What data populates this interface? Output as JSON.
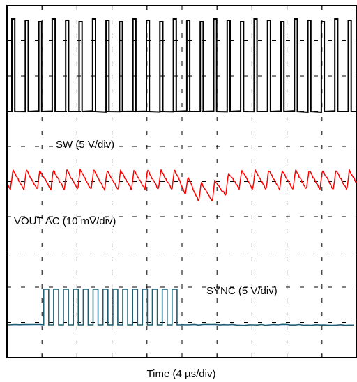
{
  "chart_data": {
    "type": "line",
    "title": "",
    "xlabel": "Time (4 µs/div)",
    "ylabel": "",
    "x_divisions": 10,
    "y_divisions": 10,
    "grid": "dashed",
    "traces": [
      {
        "name": "SW (5 V/div)",
        "color": "#000000",
        "description": "switch-node square wave, about 2.6 pulses per division"
      },
      {
        "name": "VOUT AC (10 mV/div)",
        "color": "#ff0000",
        "description": "AC-coupled output ripple sawtooth with a brief dip mid-capture"
      },
      {
        "name": "SYNC (5 V/div)",
        "color": "#1f5f73",
        "description": "sync clock active from about 1.2 to 5.0 divisions, then low"
      }
    ]
  }
}
